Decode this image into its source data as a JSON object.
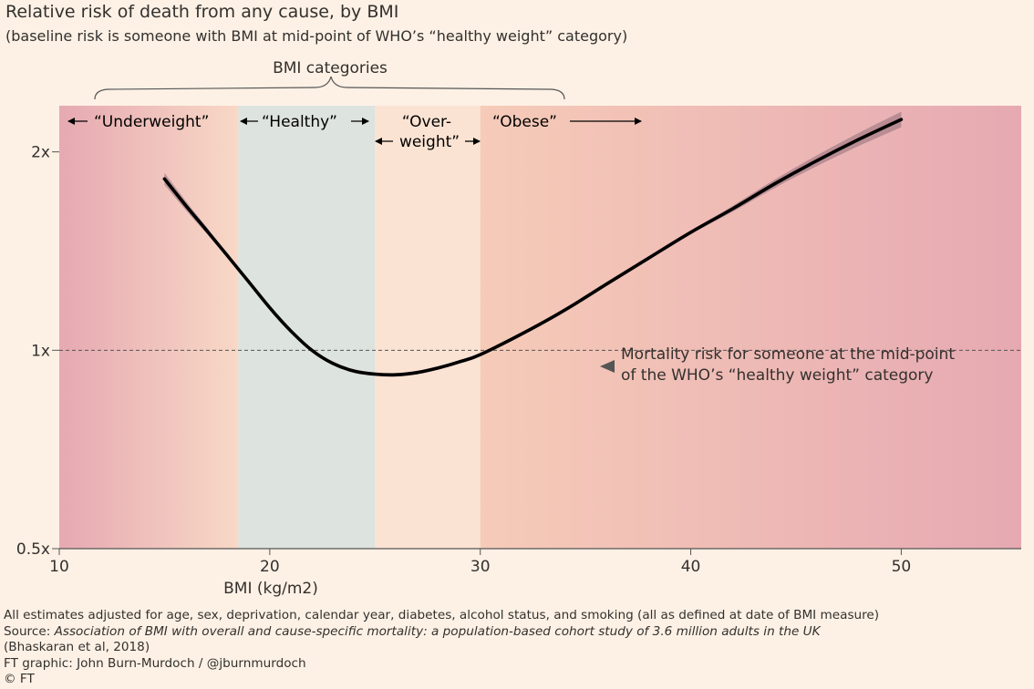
{
  "title": "Relative risk of death from any cause, by BMI",
  "subtitle": "(baseline risk is someone with BMI at mid-point of WHO’s “healthy weight” category)",
  "brace_label": "BMI categories",
  "annotation": {
    "line1": "Mortality risk for someone at the mid-point",
    "line2": "of the WHO’s “healthy weight” category"
  },
  "categories": {
    "underweight": "“Underweight”",
    "healthy": "“Healthy”",
    "overweight_1": "“Over-",
    "overweight_2": "weight”",
    "obese": "“Obese”"
  },
  "footer": {
    "note": "All estimates adjusted for age, sex, deprivation, calendar year, diabetes, alcohol status, and smoking (all as defined at date of BMI measure)",
    "source_prefix": "Source: ",
    "source_title": "Association of BMI with overall and cause-specific mortality: a population-based cohort study of 3.6 million adults in the UK",
    "source_cite": "(Bhaskaran et al, 2018)",
    "credit": "FT graphic: John Burn-Murdoch / @jburnmurdoch",
    "copyright": "© FT"
  },
  "colors": {
    "background": "#fdf1e5",
    "edge_pink": "#e6a9b2",
    "band_light": "#f8d8c6",
    "healthy_band": "#dde3df",
    "overweight_band": "#fbe3d3",
    "obese_band": "#f6cbb8",
    "curve": "#000000",
    "ci": "#a8808a",
    "reference_line": "#555555"
  },
  "chart_data": {
    "type": "line",
    "title": "Relative risk of death from any cause, by BMI",
    "xlabel": "BMI (kg/m2)",
    "ylabel": "",
    "x_ticks": [
      10,
      20,
      30,
      40,
      50
    ],
    "x_tick_labels": [
      "10",
      "20",
      "30",
      "40",
      "50"
    ],
    "xlim": [
      10,
      55.7
    ],
    "y_scale": "log",
    "y_ticks": [
      0.5,
      1,
      2
    ],
    "y_tick_labels": [
      "0.5x",
      "1x",
      "2x"
    ],
    "ylim": [
      0.5,
      2.35
    ],
    "reference_line_y": 1,
    "category_bands": [
      {
        "name": "Underweight",
        "from": 10,
        "to": 18.5
      },
      {
        "name": "Healthy",
        "from": 18.5,
        "to": 25
      },
      {
        "name": "Overweight",
        "from": 25,
        "to": 30
      },
      {
        "name": "Obese",
        "from": 30,
        "to": 55.7
      }
    ],
    "series": [
      {
        "x": [
          15,
          16,
          17,
          18,
          19,
          20,
          21,
          22,
          23,
          24,
          25,
          26,
          27,
          28,
          29,
          30,
          32,
          34,
          36,
          38,
          40,
          42,
          44,
          46,
          48,
          50
        ],
        "values": [
          1.82,
          1.66,
          1.52,
          1.39,
          1.27,
          1.16,
          1.07,
          1.0,
          0.955,
          0.93,
          0.92,
          0.918,
          0.925,
          0.94,
          0.96,
          0.985,
          1.06,
          1.15,
          1.26,
          1.38,
          1.51,
          1.64,
          1.79,
          1.94,
          2.09,
          2.24
        ]
      }
    ]
  }
}
